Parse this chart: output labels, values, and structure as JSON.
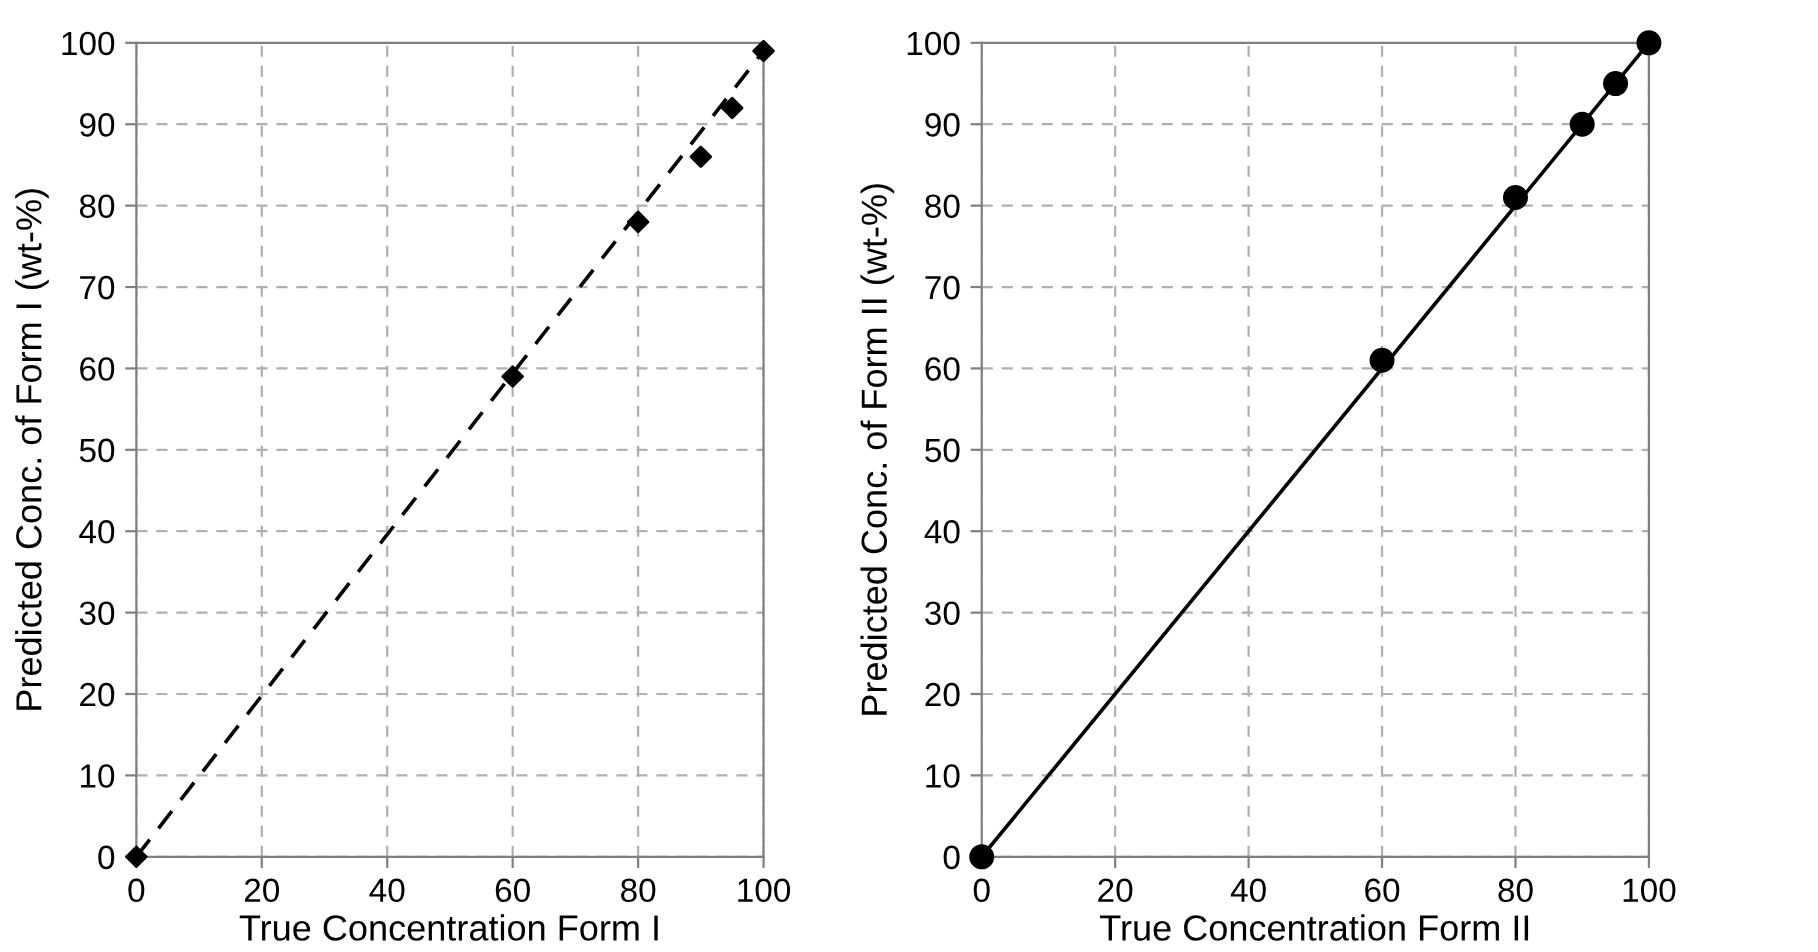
{
  "chart_data": [
    {
      "type": "scatter",
      "xlabel": "True Concentration Form I",
      "ylabel": "Predicted Conc. of Form I (wt-%)",
      "xlim": [
        0,
        100
      ],
      "ylim": [
        0,
        100
      ],
      "xticks": [
        0,
        20,
        40,
        60,
        80,
        100
      ],
      "yticks": [
        0,
        10,
        20,
        30,
        40,
        50,
        60,
        70,
        80,
        90,
        100
      ],
      "grid": true,
      "legend": false,
      "series": [
        {
          "color": "#000000",
          "marker": "diamond",
          "x": [
            0,
            60,
            80,
            90,
            95,
            100
          ],
          "values": [
            0,
            59,
            78,
            86,
            92,
            99
          ]
        },
        {
          "type": "line",
          "color": "#000000",
          "marker": "none",
          "line_style": "dashed",
          "x": [
            0,
            100
          ],
          "values": [
            0,
            99
          ]
        }
      ]
    },
    {
      "type": "scatter",
      "xlabel": "True Concentration Form II",
      "ylabel": "Predicted Conc. of Form II (wt-%)",
      "xlim": [
        0,
        100
      ],
      "ylim": [
        0,
        100
      ],
      "xticks": [
        0,
        20,
        40,
        60,
        80,
        100
      ],
      "yticks": [
        0,
        10,
        20,
        30,
        40,
        50,
        60,
        70,
        80,
        90,
        100
      ],
      "grid": true,
      "legend": false,
      "series": [
        {
          "color": "#000000",
          "marker": "circle",
          "x": [
            0,
            60,
            80,
            90,
            95,
            100
          ],
          "values": [
            0,
            61,
            81,
            90,
            95,
            100
          ]
        },
        {
          "type": "line",
          "color": "#000000",
          "marker": "none",
          "line_style": "solid",
          "x": [
            0,
            100
          ],
          "values": [
            0,
            100
          ]
        }
      ]
    }
  ]
}
